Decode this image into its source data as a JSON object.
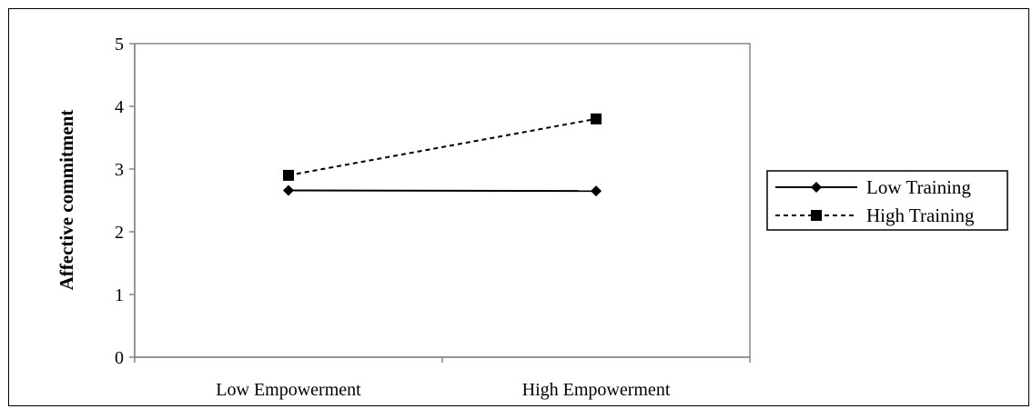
{
  "chart_data": {
    "type": "line",
    "title": "",
    "xlabel": "",
    "ylabel": "Affective commitment",
    "categories": [
      "Low Empowerment",
      "High Empowerment"
    ],
    "ylim": [
      0,
      5
    ],
    "yticks": [
      "0",
      "1",
      "2",
      "3",
      "4",
      "5"
    ],
    "grid": false,
    "legend_position": "right",
    "series": [
      {
        "name": "Low Training",
        "values": [
          2.66,
          2.65
        ],
        "marker": "diamond",
        "line_style": "solid",
        "color": "#000000"
      },
      {
        "name": "High Training",
        "values": [
          2.9,
          3.8
        ],
        "marker": "square",
        "line_style": "dashed",
        "color": "#000000"
      }
    ]
  }
}
